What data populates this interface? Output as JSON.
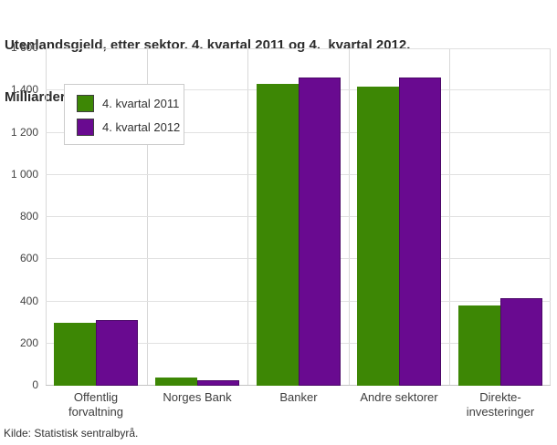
{
  "title": {
    "line1": "Utenlandsgjeld, etter sektor. 4. kvartal 2011 og 4.  kvartal 2012.",
    "line2": "Milliarder kroner"
  },
  "source": "Kilde: Statistisk sentralbyrå.",
  "colors": {
    "series_2011": "#3d8705",
    "series_2012": "#690a90",
    "gridline": "#e1e1e1",
    "axis_line": "#c3c3c3",
    "title_text": "#2b2b2b"
  },
  "chart_data": {
    "type": "bar",
    "title": "Utenlandsgjeld, etter sektor. 4. kvartal 2011 og 4. kvartal 2012. Milliarder kroner",
    "xlabel": "",
    "ylabel": "",
    "categories": [
      "Offentlig forvaltning",
      "Norges Bank",
      "Banker",
      "Andre sektorer",
      "Direkteinvesteringer"
    ],
    "category_label_lines": [
      [
        "Offentlig",
        "forvaltning"
      ],
      [
        "Norges Bank"
      ],
      [
        "Banker"
      ],
      [
        "Andre sektorer"
      ],
      [
        "Direkte-",
        "investeringer"
      ]
    ],
    "series": [
      {
        "name": "4. kvartal 2011",
        "color": "#3d8705",
        "values": [
          300,
          40,
          1432,
          1420,
          380
        ]
      },
      {
        "name": "4. kvartal 2012",
        "color": "#690a90",
        "values": [
          312,
          25,
          1460,
          1462,
          415
        ]
      }
    ],
    "ylim": [
      0,
      1600
    ],
    "ytick_step": 200,
    "ytick_labels": [
      "0",
      "200",
      "400",
      "600",
      "800",
      "1 000",
      "1 200",
      "1 400",
      "1 600"
    ],
    "grid": true,
    "legend_position": "top-left"
  }
}
